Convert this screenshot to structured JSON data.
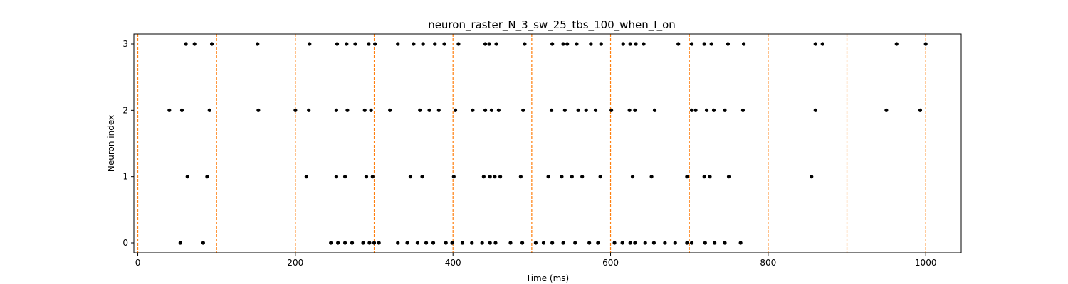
{
  "chart_data": {
    "type": "scatter",
    "title": "neuron_raster_N_3_sw_25_tbs_100_when_I_on",
    "xlabel": "Time (ms)",
    "ylabel": "Neuron index",
    "xlim": [
      -5,
      1045
    ],
    "ylim": [
      -0.15,
      3.15
    ],
    "xticks": [
      0,
      200,
      400,
      600,
      800,
      1000
    ],
    "xtick_labels": [
      "0",
      "200",
      "400",
      "600",
      "800",
      "1000"
    ],
    "yticks": [
      0,
      1,
      2,
      3
    ],
    "ytick_labels": [
      "0",
      "1",
      "2",
      "3"
    ],
    "grid": false,
    "legend": "none",
    "vlines": [
      0,
      100,
      200,
      300,
      400,
      500,
      600,
      700,
      800,
      900,
      1000
    ],
    "colors": {
      "points": "#000000",
      "vlines": "#ff7f0e"
    },
    "series": [
      {
        "neuron": 0,
        "x": [
          54,
          83,
          245,
          254,
          263,
          272,
          286,
          294,
          300,
          306,
          330,
          342,
          355,
          366,
          375,
          391,
          399,
          412,
          424,
          437,
          447,
          454,
          473,
          488,
          505,
          515,
          526,
          540,
          555,
          573,
          584,
          605,
          615,
          625,
          631,
          644,
          655,
          669,
          682,
          697,
          703,
          720,
          732,
          745,
          765
        ]
      },
      {
        "neuron": 1,
        "x": [
          63,
          88,
          214,
          252,
          263,
          290,
          298,
          346,
          361,
          401,
          439,
          447,
          453,
          460,
          486,
          521,
          538,
          551,
          564,
          587,
          628,
          652,
          697,
          719,
          726,
          750,
          855
        ]
      },
      {
        "neuron": 2,
        "x": [
          40,
          56,
          91,
          153,
          200,
          217,
          252,
          266,
          288,
          296,
          320,
          358,
          370,
          382,
          403,
          425,
          441,
          449,
          458,
          489,
          525,
          542,
          559,
          569,
          581,
          601,
          624,
          631,
          656,
          703,
          708,
          722,
          731,
          745,
          768,
          860,
          950,
          993
        ]
      },
      {
        "neuron": 3,
        "x": [
          61,
          72,
          94,
          152,
          218,
          253,
          265,
          276,
          293,
          301,
          330,
          350,
          362,
          377,
          389,
          407,
          441,
          446,
          455,
          491,
          526,
          540,
          545,
          557,
          575,
          588,
          616,
          625,
          632,
          642,
          686,
          703,
          719,
          728,
          749,
          769,
          860,
          869,
          963,
          1000
        ]
      }
    ]
  }
}
